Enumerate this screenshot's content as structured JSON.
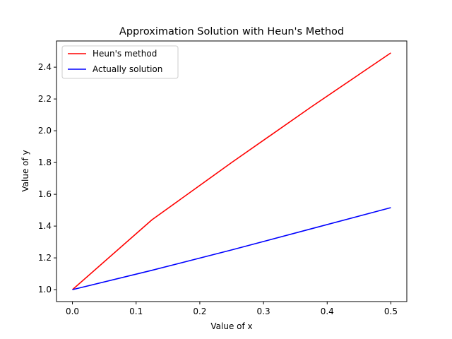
{
  "chart_data": {
    "type": "line",
    "title": "Approximation Solution with Heun's Method",
    "xlabel": "Value of x",
    "ylabel": "Value of y",
    "xlim": [
      -0.025,
      0.525
    ],
    "ylim": [
      0.925,
      2.565
    ],
    "xticks": [
      0.0,
      0.1,
      0.2,
      0.3,
      0.4,
      0.5
    ],
    "xtick_labels": [
      "0.0",
      "0.1",
      "0.2",
      "0.3",
      "0.4",
      "0.5"
    ],
    "yticks": [
      1.0,
      1.2,
      1.4,
      1.6,
      1.8,
      2.0,
      2.2,
      2.4
    ],
    "ytick_labels": [
      "1.0",
      "1.2",
      "1.4",
      "1.6",
      "1.8",
      "2.0",
      "2.2",
      "2.4"
    ],
    "grid": false,
    "legend_position": "top-left",
    "series": [
      {
        "name": "Heun's method",
        "color": "#ff0000",
        "x": [
          0.0,
          0.125,
          0.25,
          0.375,
          0.5
        ],
        "y": [
          1.0,
          1.44,
          1.8,
          2.15,
          2.49
        ]
      },
      {
        "name": "Actually solution",
        "color": "#0000ff",
        "x": [
          0.0,
          0.125,
          0.25,
          0.375,
          0.5
        ],
        "y": [
          1.0,
          1.122,
          1.25,
          1.383,
          1.516
        ]
      }
    ]
  }
}
